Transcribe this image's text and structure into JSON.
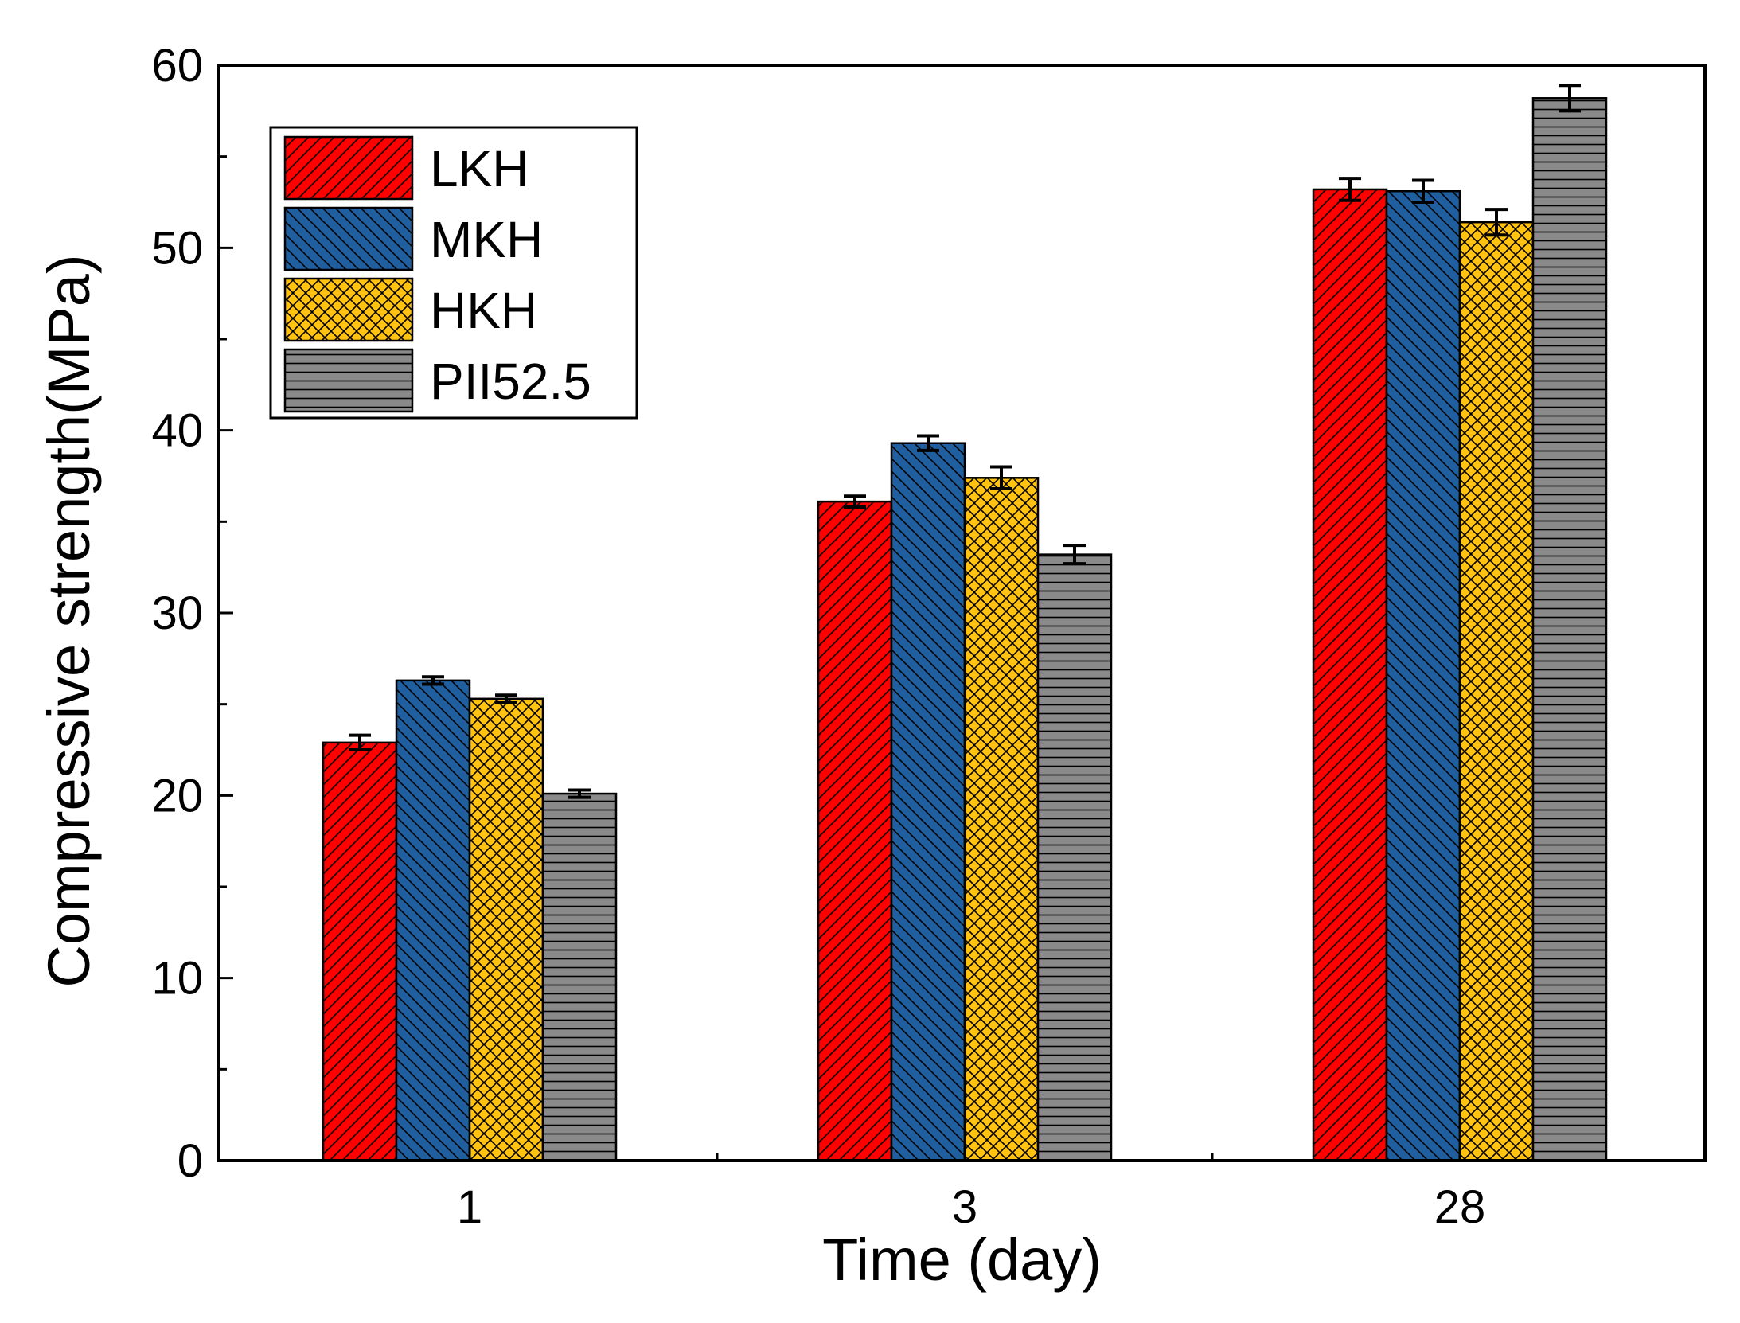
{
  "chart_data": {
    "type": "bar",
    "title": "",
    "xlabel": "Time (day)",
    "ylabel": "Compressive strength(MPa)",
    "ylim": [
      0,
      60
    ],
    "yticks": [
      "0",
      "10",
      "20",
      "30",
      "40",
      "50",
      "60"
    ],
    "categories": [
      "1",
      "3",
      "28"
    ],
    "legend_position": "top-left",
    "series": [
      {
        "name": "LKH",
        "color": "#ff0000",
        "pattern": "diagonal-forward",
        "values": [
          22.9,
          36.1,
          53.2
        ],
        "errors": [
          0.4,
          0.3,
          0.6
        ]
      },
      {
        "name": "MKH",
        "color": "#1f5fa0",
        "pattern": "diagonal-backward",
        "values": [
          26.3,
          39.3,
          53.1
        ],
        "errors": [
          0.2,
          0.4,
          0.6
        ]
      },
      {
        "name": "HKH",
        "color": "#ffc20e",
        "pattern": "crosshatch",
        "values": [
          25.3,
          37.4,
          51.4
        ],
        "errors": [
          0.2,
          0.6,
          0.7
        ]
      },
      {
        "name": "PII52.5",
        "color": "#8a8a8a",
        "pattern": "horizontal",
        "values": [
          20.1,
          33.2,
          58.2
        ],
        "errors": [
          0.2,
          0.5,
          0.7
        ]
      }
    ]
  }
}
